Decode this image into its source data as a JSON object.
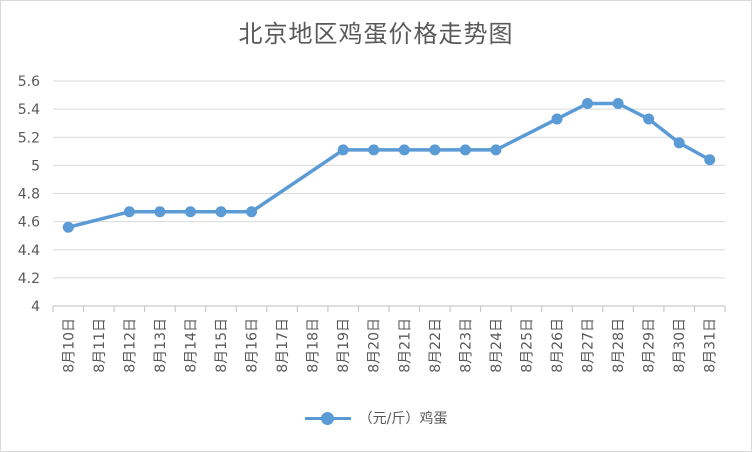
{
  "chart_data": {
    "type": "line",
    "title": "北京地区鸡蛋价格走势图",
    "categories": [
      "8月10日",
      "8月11日",
      "8月12日",
      "8月13日",
      "8月14日",
      "8月15日",
      "8月16日",
      "8月17日",
      "8月18日",
      "8月19日",
      "8月20日",
      "8月21日",
      "8月22日",
      "8月23日",
      "8月24日",
      "8月25日",
      "8月26日",
      "8月27日",
      "8月28日",
      "8月29日",
      "8月30日",
      "8月31日"
    ],
    "series": [
      {
        "name": "（元/斤）鸡蛋",
        "color": "#5b9bd5",
        "values": [
          4.56,
          null,
          4.67,
          4.67,
          4.67,
          4.67,
          4.67,
          null,
          null,
          5.11,
          5.11,
          5.11,
          5.11,
          5.11,
          5.11,
          null,
          5.33,
          5.44,
          5.44,
          5.33,
          5.16,
          5.04
        ]
      }
    ],
    "yticks": [
      "4",
      "4.2",
      "4.4",
      "4.6",
      "4.8",
      "5",
      "5.2",
      "5.4",
      "5.6"
    ],
    "ylim": [
      4,
      5.6
    ],
    "grid": true,
    "legend": "bottom"
  }
}
